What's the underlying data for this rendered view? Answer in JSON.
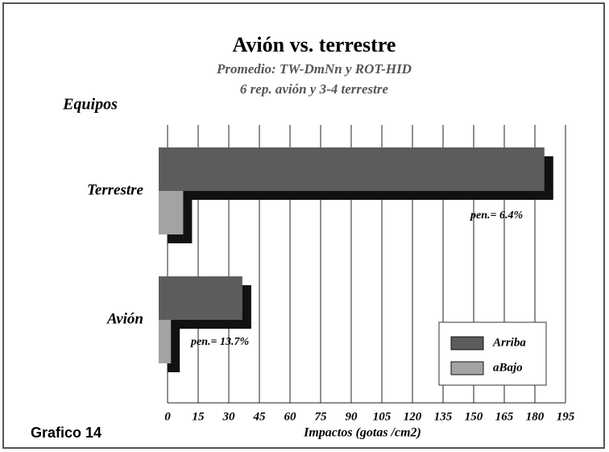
{
  "chart_data": {
    "type": "bar",
    "orientation": "horizontal",
    "title": "Avión vs. terrestre",
    "subtitle": [
      "Promedio: TW-DmNn y ROT-HID",
      "6 rep. avión y 3-4 terrestre"
    ],
    "y_label": "Equipos",
    "x_label": "Impactos (gotas /cm2)",
    "figure_label": "Grafico 14",
    "categories": [
      "Terrestre",
      "Avión"
    ],
    "series": [
      {
        "name": "Arriba",
        "color": "#5c5c5c",
        "values": [
          189,
          41
        ]
      },
      {
        "name": "aBajo",
        "color": "#a3a3a3",
        "values": [
          12,
          6
        ]
      }
    ],
    "annotations": [
      "pen.= 6.4%",
      "pen.= 13.7%"
    ],
    "xlim": [
      0,
      195
    ],
    "xticks": [
      0,
      15,
      30,
      45,
      60,
      75,
      90,
      105,
      120,
      135,
      150,
      165,
      180,
      195
    ],
    "grid": true,
    "legend": "lower right"
  }
}
